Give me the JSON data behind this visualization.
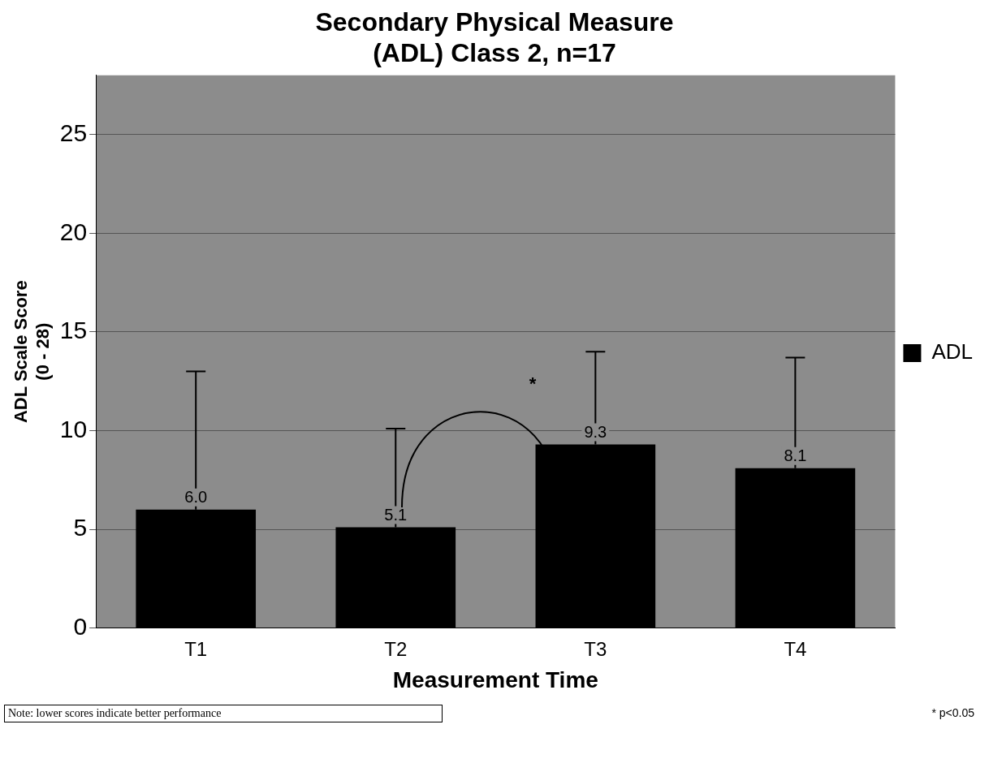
{
  "chart_data": {
    "type": "bar",
    "title": [
      "Secondary Physical Measure",
      "(ADL) Class 2, n=17"
    ],
    "xlabel": "Measurement Time",
    "ylabel": [
      "ADL Scale Score",
      "(0 - 28)"
    ],
    "categories": [
      "T1",
      "T2",
      "T3",
      "T4"
    ],
    "series": [
      {
        "name": "ADL",
        "color": "#000000",
        "values": [
          6.0,
          5.1,
          9.3,
          8.1
        ],
        "errors": [
          [
            6.0,
            13.0
          ],
          [
            5.1,
            10.1
          ],
          [
            9.3,
            14.0
          ],
          [
            8.1,
            13.7
          ]
        ],
        "value_labels": [
          "6.0",
          "5.1",
          "9.3",
          "8.1"
        ]
      }
    ],
    "ylim": [
      0,
      28
    ],
    "yticks": [
      0,
      5,
      10,
      15,
      20,
      25
    ],
    "grid": "y",
    "legend": "right",
    "annotations": [
      "*",
      "Note: lower scores indicate better performance",
      "* p<0.05"
    ]
  }
}
